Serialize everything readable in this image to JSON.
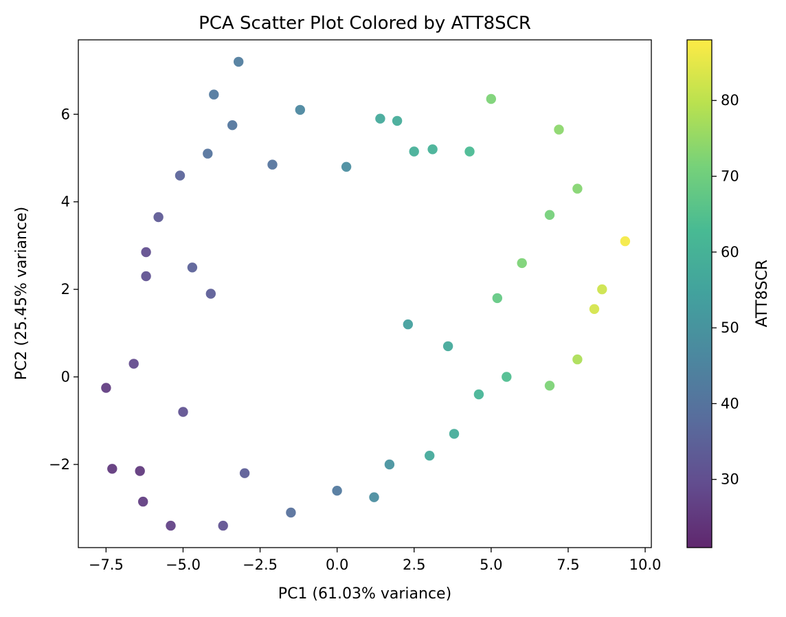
{
  "chart_data": {
    "type": "scatter",
    "title": "PCA Scatter Plot Colored by ATT8SCR",
    "xlabel": "PC1 (61.03% variance)",
    "ylabel": "PC2 (25.45% variance)",
    "xlim": [
      -8.4,
      10.2
    ],
    "ylim": [
      -3.9,
      7.7
    ],
    "x_ticks": [
      -7.5,
      -5.0,
      -2.5,
      0.0,
      2.5,
      5.0,
      7.5,
      10.0
    ],
    "x_tick_labels": [
      "−7.5",
      "−5.0",
      "−2.5",
      "0.0",
      "2.5",
      "5.0",
      "7.5",
      "10.0"
    ],
    "y_ticks": [
      -2,
      0,
      2,
      4,
      6
    ],
    "y_tick_labels": [
      "−2",
      "0",
      "2",
      "4",
      "6"
    ],
    "grid": false,
    "colormap": "viridis",
    "colorbar": {
      "label": "ATT8SCR",
      "range": [
        21,
        88
      ],
      "ticks": [
        30,
        40,
        50,
        60,
        70,
        80
      ],
      "tick_labels": [
        "30",
        "40",
        "50",
        "60",
        "70",
        "80"
      ]
    },
    "point_alpha": 0.8,
    "points": [
      [
        -3.2,
        7.2,
        43
      ],
      [
        -4.0,
        6.45,
        42
      ],
      [
        -3.4,
        5.75,
        41
      ],
      [
        -1.2,
        6.1,
        46
      ],
      [
        5.0,
        6.35,
        72
      ],
      [
        7.2,
        5.65,
        74
      ],
      [
        7.8,
        4.3,
        73
      ],
      [
        9.35,
        3.1,
        87
      ],
      [
        1.4,
        5.9,
        57
      ],
      [
        1.95,
        5.85,
        58
      ],
      [
        -4.2,
        5.1,
        40
      ],
      [
        -5.1,
        4.6,
        36
      ],
      [
        -5.8,
        3.65,
        33
      ],
      [
        -6.2,
        2.85,
        30
      ],
      [
        -6.2,
        2.3,
        31
      ],
      [
        -6.6,
        0.3,
        29
      ],
      [
        -7.5,
        -0.25,
        26
      ],
      [
        -7.3,
        -2.1,
        25
      ],
      [
        -6.4,
        -2.15,
        25
      ],
      [
        -6.3,
        -2.85,
        26
      ],
      [
        -5.4,
        -3.4,
        27
      ],
      [
        -3.7,
        -3.4,
        31
      ],
      [
        -1.5,
        -3.1,
        39
      ],
      [
        1.2,
        -2.75,
        48
      ],
      [
        4.3,
        5.15,
        63
      ],
      [
        3.1,
        5.2,
        60
      ],
      [
        2.5,
        5.15,
        59
      ],
      [
        6.9,
        3.7,
        71
      ],
      [
        8.6,
        2.0,
        82
      ],
      [
        8.35,
        1.55,
        83
      ],
      [
        7.8,
        0.4,
        78
      ],
      [
        6.9,
        -0.2,
        72
      ],
      [
        3.8,
        -1.3,
        58
      ],
      [
        3.0,
        -1.8,
        57
      ],
      [
        5.2,
        1.8,
        68
      ],
      [
        6.0,
        2.6,
        72
      ],
      [
        -4.1,
        1.9,
        34
      ],
      [
        -3.0,
        -2.2,
        34
      ],
      [
        0.0,
        -2.6,
        42
      ],
      [
        1.7,
        -2.0,
        50
      ],
      [
        -5.0,
        -0.8,
        31
      ],
      [
        -4.7,
        2.5,
        35
      ],
      [
        -2.1,
        4.85,
        40
      ],
      [
        0.3,
        4.8,
        48
      ],
      [
        2.3,
        1.2,
        54
      ],
      [
        3.6,
        0.7,
        57
      ],
      [
        4.6,
        -0.4,
        61
      ],
      [
        5.5,
        0.0,
        64
      ]
    ]
  }
}
